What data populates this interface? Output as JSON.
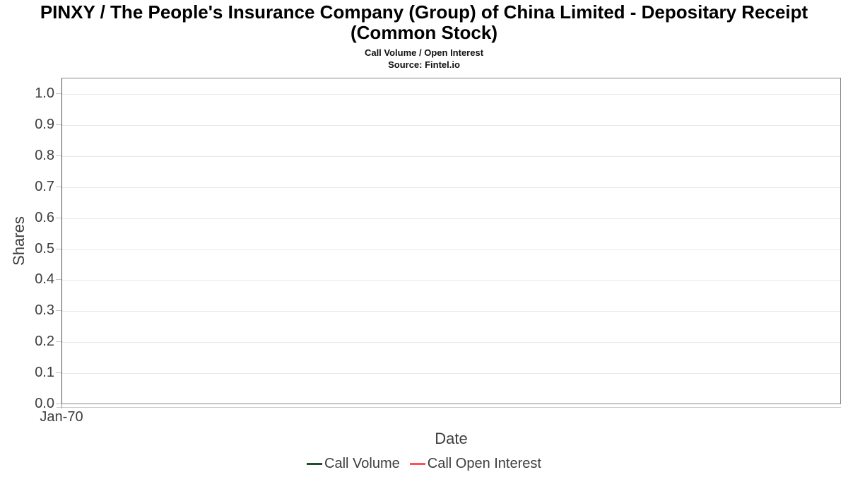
{
  "chart_data": {
    "type": "line",
    "title": "PINXY / The People's Insurance Company (Group) of China Limited - Depositary Receipt (Common Stock)",
    "subtitle": "Call Volume / Open Interest",
    "source": "Source: Fintel.io",
    "xlabel": "Date",
    "ylabel": "Shares",
    "x_ticks": [
      "Jan-70"
    ],
    "y_ticks": [
      "0.0",
      "0.1",
      "0.2",
      "0.3",
      "0.4",
      "0.5",
      "0.6",
      "0.7",
      "0.8",
      "0.9",
      "1.0"
    ],
    "ylim": [
      0,
      1.05
    ],
    "grid": true,
    "legend_position": "bottom",
    "series": [
      {
        "name": "Call Volume",
        "color": "#1d4f2a",
        "x": [],
        "values": []
      },
      {
        "name": "Call Open Interest",
        "color": "#ff5252",
        "x": [],
        "values": []
      }
    ]
  }
}
